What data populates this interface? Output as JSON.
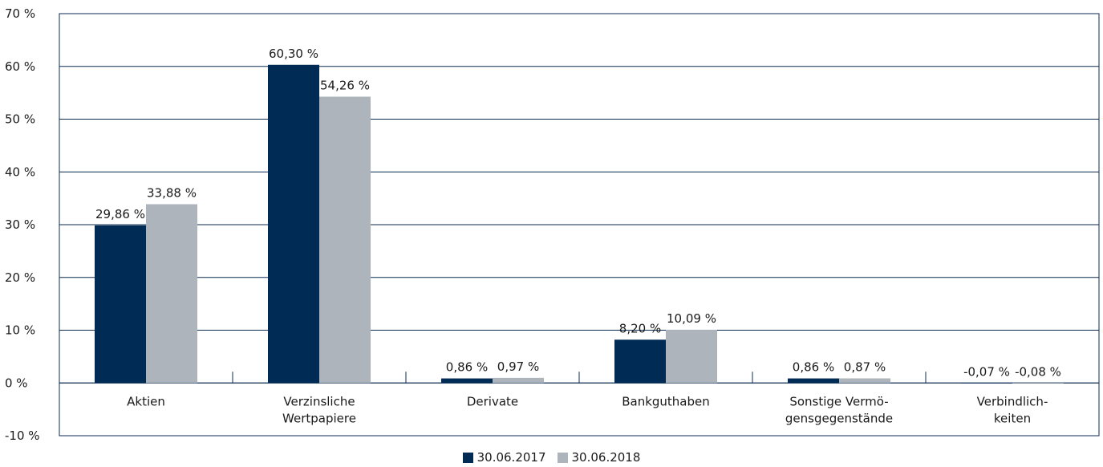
{
  "chart_data": {
    "type": "bar",
    "categories": [
      [
        "Aktien"
      ],
      [
        "Verzinsliche",
        "Wertpapiere"
      ],
      [
        "Derivate"
      ],
      [
        "Bankguthaben"
      ],
      [
        "Sonstige Vermö-",
        "gensgegenstände"
      ],
      [
        "Verbindlich-",
        "keiten"
      ]
    ],
    "series": [
      {
        "name": "30.06.2017",
        "color": "#002b55",
        "values": [
          29.86,
          60.3,
          0.86,
          8.2,
          0.86,
          -0.07
        ],
        "labels": [
          "29,86 %",
          "60,30 %",
          "0,86 %",
          "8,20 %",
          "0,86 %",
          "-0,07 %"
        ]
      },
      {
        "name": "30.06.2018",
        "color": "#adb4bb",
        "values": [
          33.88,
          54.26,
          0.97,
          10.09,
          0.87,
          -0.08
        ],
        "labels": [
          "33,88 %",
          "54,26 %",
          "0,97 %",
          "10,09 %",
          "0,87 %",
          "-0,08 %"
        ]
      }
    ],
    "y_ticks": [
      70,
      60,
      50,
      40,
      30,
      20,
      10,
      0,
      -10
    ],
    "y_tick_labels": [
      "70 %",
      "60 %",
      "50 %",
      "40 %",
      "30 %",
      "20 %",
      "10 %",
      "0 %",
      "-10 %"
    ],
    "ylim": [
      -10,
      70
    ],
    "grid": true,
    "legend_position": "bottom-center",
    "gridline_color": "#0b2a50"
  }
}
